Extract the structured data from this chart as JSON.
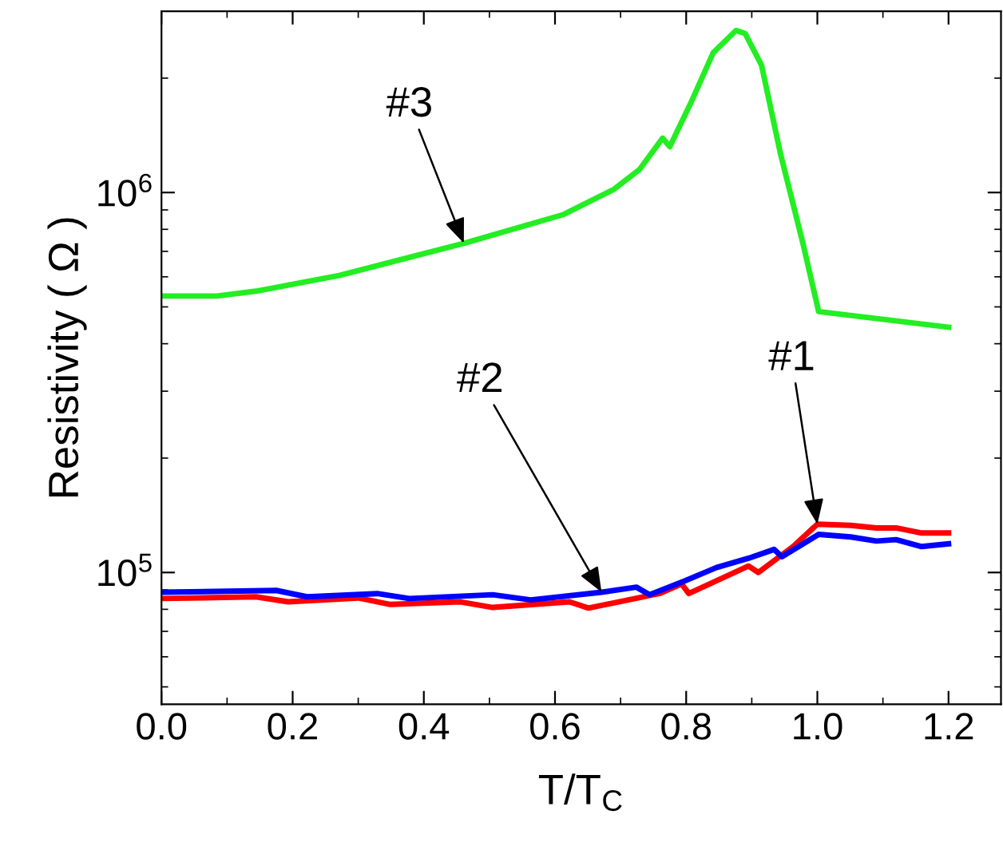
{
  "chart_data": {
    "type": "line",
    "xlabel": "T/T$_{C}$",
    "ylabel": "Resistivity ( Ω )",
    "log": "y",
    "grid": false,
    "xlim": [
      0,
      1.28
    ],
    "xticks": [
      {
        "value": 0,
        "label": "0.0"
      },
      0.2,
      0.4,
      0.6,
      0.8,
      {
        "value": 1,
        "label": "1.0"
      },
      1.2
    ],
    "ylim": [
      45000,
      3000000
    ],
    "yticks": [
      {
        "value": 100000,
        "label": "10$^{5}$"
      },
      {
        "value": 1000000,
        "label": "10$^{6}$"
      }
    ],
    "series": [
      {
        "color": "#ff0000",
        "x": [
          0,
          0.144,
          0.193,
          0.3,
          0.349,
          0.456,
          0.505,
          0.622,
          0.651,
          0.759,
          0.793,
          0.804,
          0.895,
          0.91,
          0.963,
          1.0,
          1.051,
          1.09,
          1.12,
          1.159,
          1.2
        ],
        "values": [
          85400,
          86300,
          83700,
          85700,
          82400,
          83700,
          80900,
          83700,
          80600,
          88000,
          93300,
          88000,
          104000,
          100000,
          117000,
          134000,
          133000,
          131000,
          131000,
          127000,
          127000
        ]
      },
      {
        "color": "#0000ff",
        "x": [
          0,
          0.175,
          0.222,
          0.329,
          0.378,
          0.505,
          0.563,
          0.671,
          0.724,
          0.744,
          0.798,
          0.846,
          0.895,
          0.934,
          0.946,
          1.002,
          1.051,
          1.09,
          1.12,
          1.159,
          1.2
        ],
        "values": [
          88700,
          89700,
          86300,
          88000,
          85400,
          87400,
          84700,
          88700,
          91500,
          87400,
          95100,
          103000,
          109000,
          115000,
          110000,
          126000,
          124000,
          121000,
          122000,
          117000,
          119000
        ]
      },
      {
        "color": "#22ee22",
        "x": [
          0,
          0.085,
          0.144,
          0.271,
          0.461,
          0.612,
          0.69,
          0.729,
          0.764,
          0.775,
          0.807,
          0.841,
          0.876,
          0.89,
          0.915,
          0.944,
          0.978,
          1.002,
          1.2
        ],
        "values": [
          534000,
          534000,
          550000,
          605000,
          735000,
          874000,
          1020000,
          1150000,
          1390000,
          1320000,
          1720000,
          2330000,
          2670000,
          2620000,
          2160000,
          1260000,
          735000,
          486000,
          442000
        ]
      }
    ],
    "annotations": [
      {
        "text": "#3",
        "x": 0.461,
        "y": 735000
      },
      {
        "text": "#2",
        "x": 0.671,
        "y": 88700
      },
      {
        "text": "#1",
        "x": 1.0,
        "y": 134000
      }
    ]
  }
}
